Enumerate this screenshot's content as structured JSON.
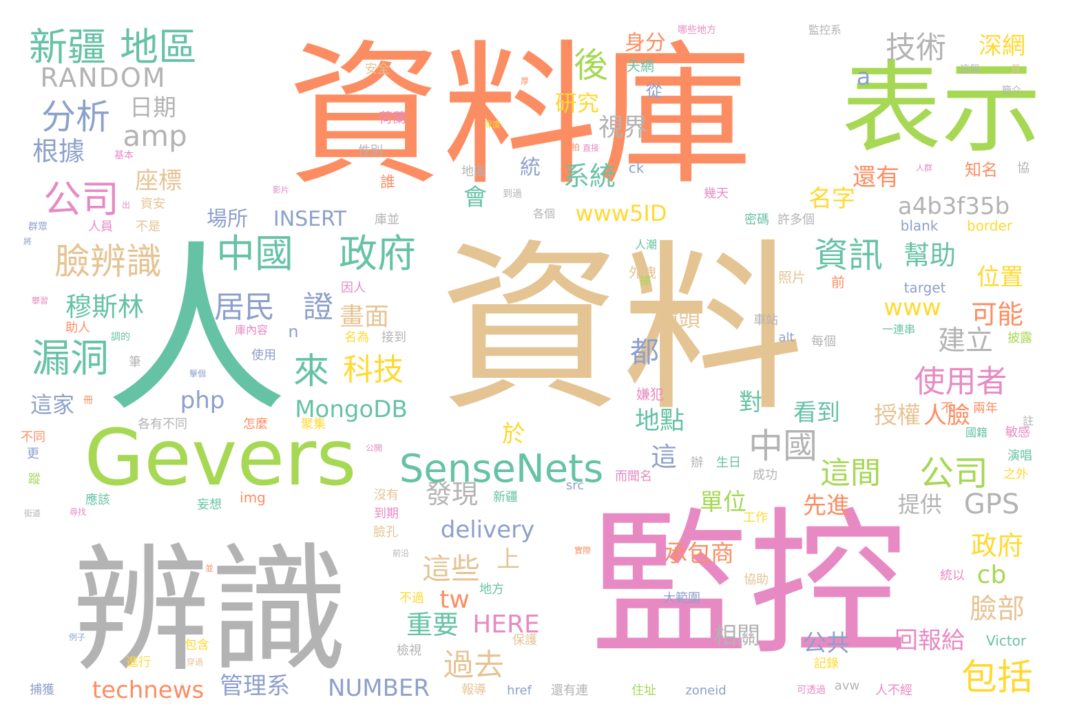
{
  "palette": {
    "orange": "#fc8d62",
    "tan": "#e5c494",
    "green": "#66c2a5",
    "lime": "#a6d854",
    "pink": "#e78ac3",
    "gray": "#b3b3b3",
    "blue": "#8da0cb",
    "yellow": "#ffd92f"
  },
  "words": [
    {
      "text": "資料庫",
      "color": "orange"
    },
    {
      "text": "資料",
      "color": "tan"
    },
    {
      "text": "人",
      "color": "green"
    },
    {
      "text": "表示",
      "color": "lime"
    },
    {
      "text": "Gevers",
      "color": "lime"
    },
    {
      "text": "辨識",
      "color": "gray"
    },
    {
      "text": "監控",
      "color": "pink"
    },
    {
      "text": "新疆",
      "color": "green"
    },
    {
      "text": "地區",
      "color": "green"
    },
    {
      "text": "RANDOM",
      "color": "gray"
    },
    {
      "text": "分析",
      "color": "blue"
    },
    {
      "text": "amp",
      "color": "gray"
    },
    {
      "text": "日期",
      "color": "gray"
    },
    {
      "text": "根據",
      "color": "blue"
    },
    {
      "text": "公司",
      "color": "pink"
    },
    {
      "text": "座標",
      "color": "tan"
    },
    {
      "text": "臉辨識",
      "color": "tan"
    },
    {
      "text": "中國",
      "color": "green"
    },
    {
      "text": "政府",
      "color": "green"
    },
    {
      "text": "漏洞",
      "color": "green"
    },
    {
      "text": "穆斯林",
      "color": "green"
    },
    {
      "text": "居民",
      "color": "blue"
    },
    {
      "text": "證",
      "color": "blue"
    },
    {
      "text": "畫面",
      "color": "tan"
    },
    {
      "text": "來",
      "color": "green"
    },
    {
      "text": "科技",
      "color": "yellow"
    },
    {
      "text": "這家",
      "color": "blue"
    },
    {
      "text": "php",
      "color": "blue"
    },
    {
      "text": "MongoDB",
      "color": "green"
    },
    {
      "text": "SenseNets",
      "color": "green"
    },
    {
      "text": "技術",
      "color": "gray"
    },
    {
      "text": "後",
      "color": "lime"
    },
    {
      "text": "研究",
      "color": "yellow"
    },
    {
      "text": "視界",
      "color": "gray"
    },
    {
      "text": "系統",
      "color": "green"
    },
    {
      "text": "統",
      "color": "blue"
    },
    {
      "text": "會",
      "color": "green"
    },
    {
      "text": "www5ID",
      "color": "yellow"
    },
    {
      "text": "場所",
      "color": "blue"
    },
    {
      "text": "INSERT",
      "color": "blue"
    },
    {
      "text": "身分",
      "color": "orange"
    },
    {
      "text": "深網",
      "color": "yellow"
    },
    {
      "text": "a",
      "color": "blue"
    },
    {
      "text": "名字",
      "color": "yellow"
    },
    {
      "text": "還有",
      "color": "orange"
    },
    {
      "text": "a4b3f35b",
      "color": "gray"
    },
    {
      "text": "資訊",
      "color": "green"
    },
    {
      "text": "幫助",
      "color": "green"
    },
    {
      "text": "位置",
      "color": "yellow"
    },
    {
      "text": "www",
      "color": "yellow"
    },
    {
      "text": "可能",
      "color": "orange"
    },
    {
      "text": "建立",
      "color": "gray"
    },
    {
      "text": "使用者",
      "color": "pink"
    },
    {
      "text": "人臉",
      "color": "orange"
    },
    {
      "text": "授權",
      "color": "tan"
    },
    {
      "text": "中國",
      "color": "gray"
    },
    {
      "text": "這間",
      "color": "lime"
    },
    {
      "text": "公司",
      "color": "lime"
    },
    {
      "text": "都",
      "color": "blue"
    },
    {
      "text": "鏡頭",
      "color": "tan"
    },
    {
      "text": "對",
      "color": "green"
    },
    {
      "text": "看到",
      "color": "green"
    },
    {
      "text": "地點",
      "color": "green"
    },
    {
      "text": "這",
      "color": "blue"
    },
    {
      "text": "於",
      "color": "yellow"
    },
    {
      "text": "發現",
      "color": "gray"
    },
    {
      "text": "delivery",
      "color": "blue"
    },
    {
      "text": "單位",
      "color": "lime"
    },
    {
      "text": "先進",
      "color": "orange"
    },
    {
      "text": "提供",
      "color": "gray"
    },
    {
      "text": "GPS",
      "color": "gray"
    },
    {
      "text": "這些",
      "color": "tan"
    },
    {
      "text": "上",
      "color": "tan"
    },
    {
      "text": "承包商",
      "color": "orange"
    },
    {
      "text": "政府",
      "color": "yellow"
    },
    {
      "text": "臉部",
      "color": "tan"
    },
    {
      "text": "cb",
      "color": "lime"
    },
    {
      "text": "包括",
      "color": "yellow"
    },
    {
      "text": "過去",
      "color": "tan"
    },
    {
      "text": "tw",
      "color": "orange"
    },
    {
      "text": "重要",
      "color": "green"
    },
    {
      "text": "HERE",
      "color": "pink"
    },
    {
      "text": "相關",
      "color": "gray"
    },
    {
      "text": "公共",
      "color": "blue"
    },
    {
      "text": "回報給",
      "color": "pink"
    },
    {
      "text": "technews",
      "color": "orange"
    },
    {
      "text": "管理系",
      "color": "blue"
    },
    {
      "text": "NUMBER",
      "color": "blue"
    },
    {
      "text": "n",
      "color": "blue"
    },
    {
      "text": "天網",
      "color": "green"
    },
    {
      "text": "從",
      "color": "blue"
    },
    {
      "text": "安全",
      "color": "tan"
    },
    {
      "text": "荷蘭",
      "color": "pink"
    },
    {
      "text": "性別",
      "color": "gray"
    },
    {
      "text": "地區",
      "color": "gray"
    },
    {
      "text": "誰",
      "color": "orange"
    },
    {
      "text": "到過",
      "color": "gray"
    },
    {
      "text": "幾天",
      "color": "pink"
    },
    {
      "text": "ck",
      "color": "blue"
    },
    {
      "text": "各個",
      "color": "gray"
    },
    {
      "text": "庫並",
      "color": "gray"
    },
    {
      "text": "密碼",
      "color": "green"
    },
    {
      "text": "許多個",
      "color": "gray"
    },
    {
      "text": "blank",
      "color": "blue"
    },
    {
      "text": "border",
      "color": "yellow"
    },
    {
      "text": "知名",
      "color": "orange"
    },
    {
      "text": "協",
      "color": "gray"
    },
    {
      "text": "人員",
      "color": "pink"
    },
    {
      "text": "資安",
      "color": "tan"
    },
    {
      "text": "不是",
      "color": "tan"
    },
    {
      "text": "人潮",
      "color": "green"
    },
    {
      "text": "外洩",
      "color": "tan"
    },
    {
      "text": "照片",
      "color": "tan"
    },
    {
      "text": "前",
      "color": "orange"
    },
    {
      "text": "因人",
      "color": "pink"
    },
    {
      "text": "target",
      "color": "blue"
    },
    {
      "text": "車站",
      "color": "gray"
    },
    {
      "text": "一連串",
      "color": "green"
    },
    {
      "text": "庫內容",
      "color": "pink"
    },
    {
      "text": "名為",
      "color": "yellow"
    },
    {
      "text": "接到",
      "color": "gray"
    },
    {
      "text": "alt",
      "color": "blue"
    },
    {
      "text": "每個",
      "color": "gray"
    },
    {
      "text": "披露",
      "color": "lime"
    },
    {
      "text": "助人",
      "color": "orange"
    },
    {
      "text": "筆",
      "color": "gray"
    },
    {
      "text": "使用",
      "color": "blue"
    },
    {
      "text": "嫌犯",
      "color": "pink"
    },
    {
      "text": "各有不同",
      "color": "gray"
    },
    {
      "text": "怎麼",
      "color": "orange"
    },
    {
      "text": "聚集",
      "color": "yellow"
    },
    {
      "text": "兩年",
      "color": "orange"
    },
    {
      "text": "不",
      "color": "orange"
    },
    {
      "text": "註",
      "color": "gray"
    },
    {
      "text": "敏感",
      "color": "pink"
    },
    {
      "text": "國籍",
      "color": "green"
    },
    {
      "text": "不同",
      "color": "orange"
    },
    {
      "text": "更",
      "color": "blue"
    },
    {
      "text": "蹤",
      "color": "lime"
    },
    {
      "text": "辦",
      "color": "gray"
    },
    {
      "text": "生日",
      "color": "green"
    },
    {
      "text": "成功",
      "color": "gray"
    },
    {
      "text": "而聞名",
      "color": "pink"
    },
    {
      "text": "演唱",
      "color": "green"
    },
    {
      "text": "之外",
      "color": "yellow"
    },
    {
      "text": "應該",
      "color": "green"
    },
    {
      "text": "妄想",
      "color": "green"
    },
    {
      "text": "img",
      "color": "orange"
    },
    {
      "text": "沒有",
      "color": "tan"
    },
    {
      "text": "新疆",
      "color": "green"
    },
    {
      "text": "src",
      "color": "blue"
    },
    {
      "text": "到期",
      "color": "pink"
    },
    {
      "text": "工作",
      "color": "yellow"
    },
    {
      "text": "臉孔",
      "color": "tan"
    },
    {
      "text": "協助",
      "color": "tan"
    },
    {
      "text": "大範圍",
      "color": "blue"
    },
    {
      "text": "統以",
      "color": "pink"
    },
    {
      "text": "不過",
      "color": "yellow"
    },
    {
      "text": "地方",
      "color": "green"
    },
    {
      "text": "保護",
      "color": "tan"
    },
    {
      "text": "包含",
      "color": "yellow"
    },
    {
      "text": "檢視",
      "color": "gray"
    },
    {
      "text": "記錄",
      "color": "yellow"
    },
    {
      "text": "Victor",
      "color": "green"
    },
    {
      "text": "進行",
      "color": "yellow"
    },
    {
      "text": "捕獲",
      "color": "blue"
    },
    {
      "text": "報導",
      "color": "tan"
    },
    {
      "text": "href",
      "color": "blue"
    },
    {
      "text": "還有連",
      "color": "gray"
    },
    {
      "text": "住址",
      "color": "lime"
    },
    {
      "text": "zoneid",
      "color": "blue"
    },
    {
      "text": "人不經",
      "color": "pink"
    },
    {
      "text": "avw",
      "color": "gray"
    },
    {
      "text": "可透過",
      "color": "pink"
    },
    {
      "text": "哪些地方",
      "color": "pink"
    },
    {
      "text": "監控系",
      "color": "gray"
    },
    {
      "text": "這個",
      "color": "gray"
    },
    {
      "text": "員",
      "color": "tan"
    },
    {
      "text": "簡介",
      "color": "gray"
    },
    {
      "text": "深度",
      "color": "yellow"
    },
    {
      "text": "直接",
      "color": "pink"
    },
    {
      "text": "人群",
      "color": "pink"
    },
    {
      "text": "基本",
      "color": "pink"
    },
    {
      "text": "影片",
      "color": "pink"
    },
    {
      "text": "群眾",
      "color": "blue"
    },
    {
      "text": "出",
      "color": "pink"
    },
    {
      "text": "將",
      "color": "blue"
    },
    {
      "text": "攀習",
      "color": "pink"
    },
    {
      "text": "調的",
      "color": "green"
    },
    {
      "text": "冊",
      "color": "orange"
    },
    {
      "text": "公開",
      "color": "pink"
    },
    {
      "text": "據",
      "color": "lime"
    },
    {
      "text": "拍",
      "color": "orange"
    },
    {
      "text": "擊個",
      "color": "blue"
    },
    {
      "text": "尋找",
      "color": "pink"
    },
    {
      "text": "街道",
      "color": "gray"
    },
    {
      "text": "前沿",
      "color": "gray"
    },
    {
      "text": "實際",
      "color": "orange"
    },
    {
      "text": "並",
      "color": "orange"
    },
    {
      "text": "穿過",
      "color": "tan"
    },
    {
      "text": "例子",
      "color": "blue"
    },
    {
      "text": "厚",
      "color": "orange"
    }
  ]
}
